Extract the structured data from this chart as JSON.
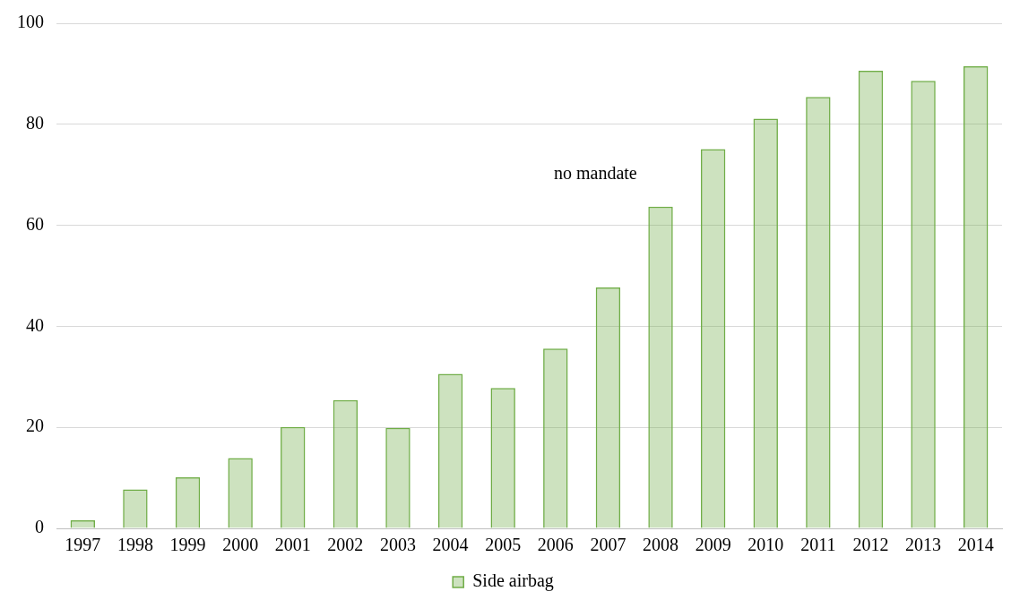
{
  "chart_data": {
    "type": "bar",
    "categories": [
      "1997",
      "1998",
      "1999",
      "2000",
      "2001",
      "2002",
      "2003",
      "2004",
      "2005",
      "2006",
      "2007",
      "2008",
      "2009",
      "2010",
      "2011",
      "2012",
      "2013",
      "2014"
    ],
    "series": [
      {
        "name": "Side airbag",
        "color": "#70ad47",
        "values": [
          1.6,
          7.7,
          10.1,
          13.9,
          20.1,
          25.4,
          19.9,
          30.6,
          27.8,
          35.6,
          47.7,
          63.7,
          75.1,
          81.1,
          85.4,
          90.6,
          88.6,
          91.5
        ]
      }
    ],
    "ylim": [
      0,
      100
    ],
    "yticks": [
      0,
      20,
      40,
      60,
      80,
      100
    ],
    "grid": "y",
    "legend": "bottom",
    "annotations": [
      "no mandate"
    ]
  }
}
